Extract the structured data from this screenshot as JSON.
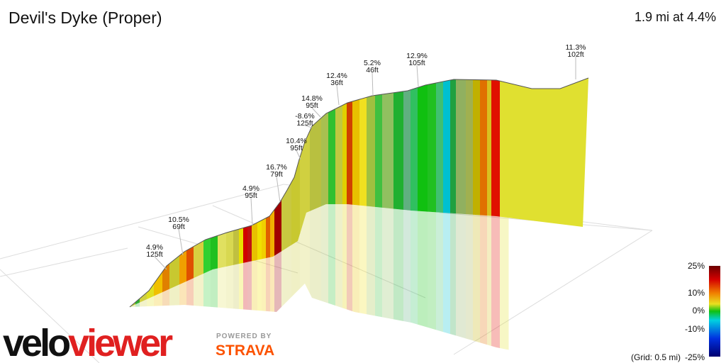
{
  "title": "Devil's Dyke (Proper)",
  "summary": "1.9 mi at 4.4%",
  "annotations": [
    {
      "grade": "4.9%",
      "height": "125ft"
    },
    {
      "grade": "10.5%",
      "height": "69ft"
    },
    {
      "grade": "4.9%",
      "height": "95ft"
    },
    {
      "grade": "16.7%",
      "height": "79ft"
    },
    {
      "grade": "10.4%",
      "height": "95ft"
    },
    {
      "grade": "-8.6%",
      "height": "125ft"
    },
    {
      "grade": "14.8%",
      "height": "95ft"
    },
    {
      "grade": "12.4%",
      "height": "36ft"
    },
    {
      "grade": "5.2%",
      "height": "46ft"
    },
    {
      "grade": "12.9%",
      "height": "105ft"
    },
    {
      "grade": "11.3%",
      "height": "102ft"
    }
  ],
  "legend": {
    "labels": [
      "25%",
      "10%",
      "0%",
      "-10%",
      "-25%"
    ],
    "note": "(Grid: 0.5 mi)"
  },
  "logos": {
    "brand_dark": "velo",
    "brand_red": "viewer",
    "powered_by": "POWERED BY",
    "partner": "STRAVA"
  }
}
